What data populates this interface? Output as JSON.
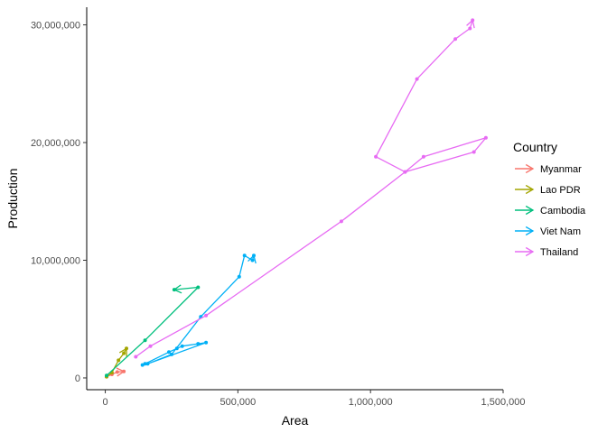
{
  "chart_data": {
    "type": "line",
    "xlabel": "Area",
    "ylabel": "Production",
    "xlim": [
      -70000,
      1500000
    ],
    "ylim": [
      -1000000,
      31500000
    ],
    "x_ticks": [
      0,
      500000,
      1000000,
      1500000
    ],
    "x_tick_labels": [
      "0",
      "500,000",
      "1,000,000",
      "1,500,000"
    ],
    "y_ticks": [
      0,
      10000000,
      20000000,
      30000000
    ],
    "y_tick_labels": [
      "0",
      "10,000,000",
      "20,000,000",
      "30,000,000"
    ],
    "grid": false,
    "legend": {
      "title": "Country",
      "position": "right"
    },
    "series": [
      {
        "name": "Myanmar",
        "color": "#F8766D",
        "points": [
          [
            5000,
            100000
          ],
          [
            25000,
            300000
          ],
          [
            45000,
            500000
          ],
          [
            70000,
            550000
          ]
        ]
      },
      {
        "name": "Lao PDR",
        "color": "#A3A500",
        "points": [
          [
            5000,
            100000
          ],
          [
            25000,
            450000
          ],
          [
            50000,
            1500000
          ],
          [
            70000,
            2100000
          ],
          [
            80000,
            2500000
          ]
        ]
      },
      {
        "name": "Cambodia",
        "color": "#00BF7D",
        "points": [
          [
            5000,
            200000
          ],
          [
            150000,
            3200000
          ],
          [
            350000,
            7700000
          ],
          [
            260000,
            7500000
          ]
        ]
      },
      {
        "name": "Viet Nam",
        "color": "#00B0F6",
        "points": [
          [
            140000,
            1100000
          ],
          [
            150000,
            1200000
          ],
          [
            240000,
            2200000
          ],
          [
            270000,
            2500000
          ],
          [
            290000,
            2700000
          ],
          [
            350000,
            2900000
          ],
          [
            380000,
            3000000
          ],
          [
            160000,
            1200000
          ],
          [
            250000,
            2000000
          ],
          [
            360000,
            5200000
          ],
          [
            505000,
            8600000
          ],
          [
            525000,
            10400000
          ],
          [
            555000,
            10000000
          ],
          [
            560000,
            10400000
          ]
        ]
      },
      {
        "name": "Thailand",
        "color": "#E76BF3",
        "points": [
          [
            115000,
            1800000
          ],
          [
            170000,
            2700000
          ],
          [
            380000,
            5300000
          ],
          [
            890000,
            13300000
          ],
          [
            1130000,
            17500000
          ],
          [
            1390000,
            19200000
          ],
          [
            1435000,
            20400000
          ],
          [
            1200000,
            18800000
          ],
          [
            1130000,
            17500000
          ],
          [
            1020000,
            18800000
          ],
          [
            1175000,
            25400000
          ],
          [
            1320000,
            28800000
          ],
          [
            1375000,
            29700000
          ],
          [
            1385000,
            30400000
          ]
        ]
      }
    ]
  }
}
